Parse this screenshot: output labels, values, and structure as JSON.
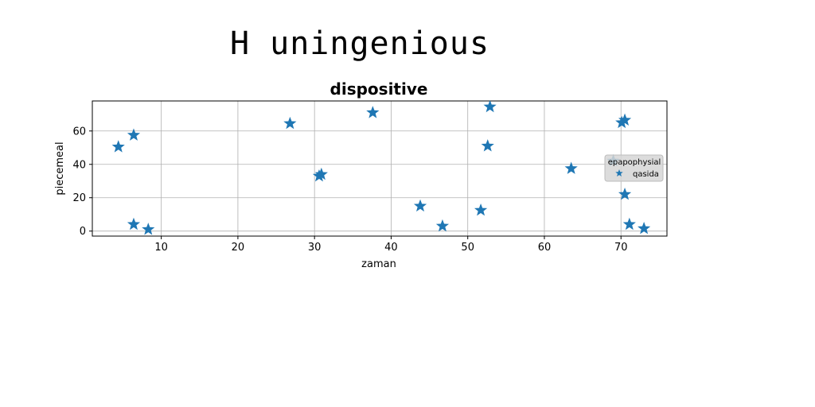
{
  "figure_title": "H uningenious",
  "chart_data": {
    "type": "scatter",
    "title": "dispositive",
    "xlabel": "zaman",
    "ylabel": "piecemeal",
    "xlim": [
      1,
      76
    ],
    "ylim": [
      -3,
      78
    ],
    "xticks": [
      10,
      20,
      30,
      40,
      50,
      60,
      70
    ],
    "yticks": [
      0,
      20,
      40,
      60
    ],
    "grid": true,
    "legend": {
      "title": "epapophysial",
      "placement": "center-right"
    },
    "series": [
      {
        "name": "qasida",
        "marker": "star",
        "color": "#1f77b4",
        "points": [
          [
            4.4,
            50.5
          ],
          [
            6.4,
            57.5
          ],
          [
            6.4,
            4.0
          ],
          [
            8.3,
            1.0
          ],
          [
            26.8,
            64.5
          ],
          [
            30.6,
            33.0
          ],
          [
            30.9,
            34.0
          ],
          [
            37.6,
            71.0
          ],
          [
            43.8,
            15.0
          ],
          [
            46.7,
            3.0
          ],
          [
            51.7,
            12.5
          ],
          [
            52.6,
            51.0
          ],
          [
            52.9,
            74.5
          ],
          [
            63.5,
            37.5
          ],
          [
            69.0,
            42.0
          ],
          [
            70.1,
            65.0
          ],
          [
            70.5,
            66.5
          ],
          [
            70.5,
            22.0
          ],
          [
            71.1,
            4.0
          ],
          [
            73.0,
            1.5
          ]
        ]
      }
    ]
  }
}
